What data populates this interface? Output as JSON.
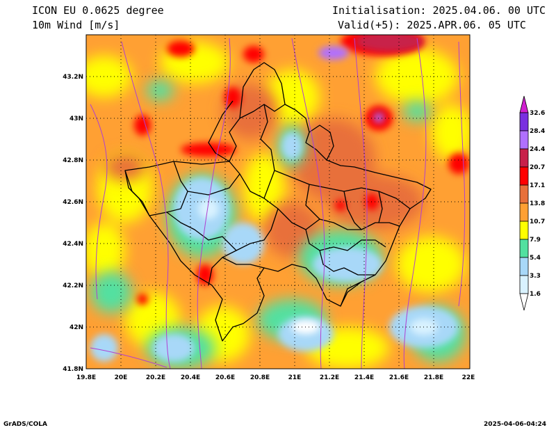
{
  "header": {
    "model": "ICON EU 0.0625 degree",
    "variable": "10m Wind [m/s]",
    "init": "Initialisation: 2025.04.06. 00 UTC",
    "valid": "Valid(+5): 2025.APR.06. 05 UTC"
  },
  "footer": {
    "left": "GrADS/COLA",
    "right": "2025-04-06-04:24"
  },
  "chart_data": {
    "type": "heatmap",
    "title": "10m Wind [m/s]",
    "xlabel": "",
    "ylabel": "",
    "xlim": [
      19.8,
      22.0
    ],
    "ylim": [
      41.8,
      43.4
    ],
    "x_ticks": [
      "19.8E",
      "20E",
      "20.2E",
      "20.4E",
      "20.6E",
      "20.8E",
      "21E",
      "21.2E",
      "21.4E",
      "21.6E",
      "21.8E",
      "22E"
    ],
    "y_ticks": [
      "41.8N",
      "42N",
      "42.2N",
      "42.4N",
      "42.6N",
      "42.8N",
      "43N",
      "43.2N"
    ],
    "grid": true,
    "colorbar": {
      "levels": [
        "1.6",
        "3.3",
        "5.4",
        "7.9",
        "10.7",
        "13.8",
        "17.1",
        "20.7",
        "24.4",
        "28.4",
        "32.6"
      ],
      "colors": [
        "#ffffff",
        "#d9f2ff",
        "#a8d8f8",
        "#52e0a0",
        "#ffff00",
        "#ffa033",
        "#e8703a",
        "#ff0000",
        "#c8204a",
        "#b070ff",
        "#7a30e0",
        "#d020d0"
      ]
    }
  }
}
